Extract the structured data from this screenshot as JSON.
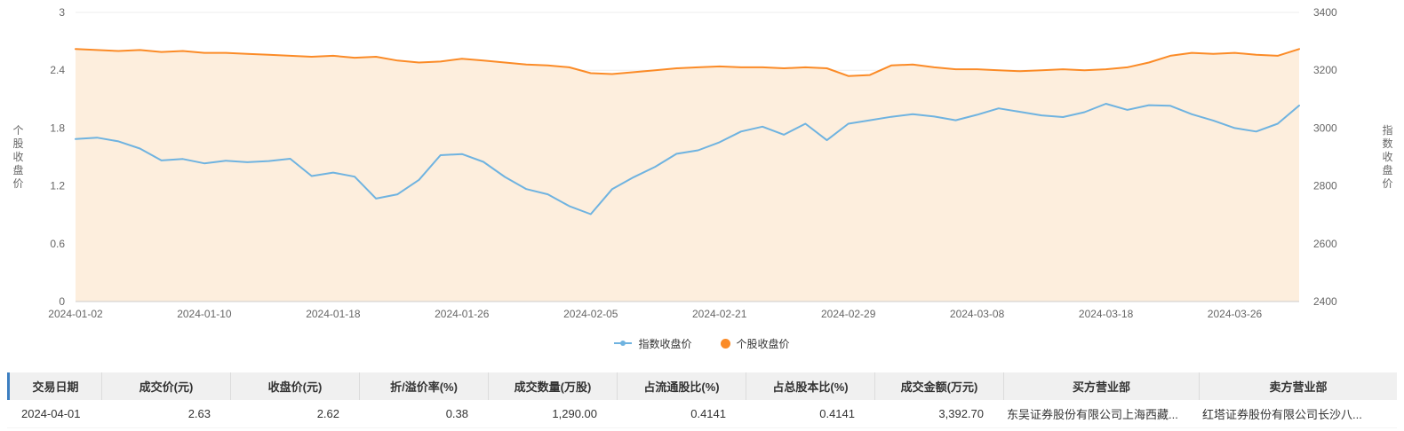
{
  "chart_data": {
    "type": "line",
    "x": [
      "2024-01-02",
      "2024-01-03",
      "2024-01-04",
      "2024-01-05",
      "2024-01-08",
      "2024-01-09",
      "2024-01-10",
      "2024-01-11",
      "2024-01-12",
      "2024-01-15",
      "2024-01-16",
      "2024-01-17",
      "2024-01-18",
      "2024-01-19",
      "2024-01-22",
      "2024-01-23",
      "2024-01-24",
      "2024-01-25",
      "2024-01-26",
      "2024-01-29",
      "2024-01-30",
      "2024-01-31",
      "2024-02-01",
      "2024-02-02",
      "2024-02-05",
      "2024-02-06",
      "2024-02-07",
      "2024-02-08",
      "2024-02-19",
      "2024-02-20",
      "2024-02-21",
      "2024-02-22",
      "2024-02-23",
      "2024-02-26",
      "2024-02-27",
      "2024-02-28",
      "2024-02-29",
      "2024-03-01",
      "2024-03-04",
      "2024-03-05",
      "2024-03-06",
      "2024-03-07",
      "2024-03-08",
      "2024-03-11",
      "2024-03-12",
      "2024-03-13",
      "2024-03-14",
      "2024-03-15",
      "2024-03-18",
      "2024-03-19",
      "2024-03-20",
      "2024-03-21",
      "2024-03-22",
      "2024-03-25",
      "2024-03-26",
      "2024-03-27",
      "2024-03-28",
      "2024-03-29"
    ],
    "x_tick_indices": [
      0,
      6,
      12,
      18,
      24,
      30,
      36,
      42,
      48,
      54
    ],
    "series": [
      {
        "name": "指数收盘价",
        "axis": "right",
        "color": "#6fb3e0",
        "values": [
          2962,
          2967,
          2954,
          2929,
          2888,
          2893,
          2878,
          2887,
          2882,
          2886,
          2894,
          2834,
          2846,
          2832,
          2756,
          2771,
          2821,
          2906,
          2910,
          2883,
          2831,
          2789,
          2771,
          2730,
          2702,
          2789,
          2830,
          2866,
          2911,
          2923,
          2951,
          2988,
          3005,
          2977,
          3015,
          2958,
          3015,
          3027,
          3039,
          3048,
          3040,
          3027,
          3046,
          3068,
          3056,
          3044,
          3038,
          3055,
          3084,
          3063,
          3079,
          3077,
          3048,
          3026,
          3000,
          2988,
          3015,
          3078
        ]
      },
      {
        "name": "个股收盘价",
        "axis": "left",
        "color": "#fb8b27",
        "area_color": "#fdeedd",
        "values": [
          2.62,
          2.61,
          2.6,
          2.61,
          2.59,
          2.6,
          2.58,
          2.58,
          2.57,
          2.56,
          2.55,
          2.54,
          2.55,
          2.53,
          2.54,
          2.5,
          2.48,
          2.49,
          2.52,
          2.5,
          2.48,
          2.46,
          2.45,
          2.43,
          2.37,
          2.36,
          2.38,
          2.4,
          2.42,
          2.43,
          2.44,
          2.43,
          2.43,
          2.42,
          2.43,
          2.42,
          2.34,
          2.35,
          2.45,
          2.46,
          2.43,
          2.41,
          2.41,
          2.4,
          2.39,
          2.4,
          2.41,
          2.4,
          2.41,
          2.43,
          2.48,
          2.55,
          2.58,
          2.57,
          2.58,
          2.56,
          2.55,
          2.62
        ]
      }
    ],
    "left_axis": {
      "title": "个股收盘价",
      "min": 0,
      "max": 3,
      "ticks": [
        0,
        0.6,
        1.2,
        1.8,
        2.4,
        3
      ]
    },
    "right_axis": {
      "title": "指数收盘价",
      "min": 2400,
      "max": 3400,
      "ticks": [
        2400,
        2600,
        2800,
        3000,
        3200,
        3400
      ]
    },
    "legend": [
      {
        "label": "指数收盘价",
        "marker": "line",
        "color": "#6fb3e0"
      },
      {
        "label": "个股收盘价",
        "marker": "circle",
        "color": "#fb8b27"
      }
    ],
    "grid": true,
    "legend_position": "bottom-center"
  },
  "table": {
    "headers": [
      "交易日期",
      "成交价(元)",
      "收盘价(元)",
      "折/溢价率(%)",
      "成交数量(万股)",
      "占流通股比(%)",
      "占总股本比(%)",
      "成交金额(万元)",
      "买方营业部",
      "卖方营业部"
    ],
    "rows": [
      [
        "2024-04-01",
        "2.63",
        "2.62",
        "0.38",
        "1,290.00",
        "0.4141",
        "0.4141",
        "3,392.70",
        "东吴证券股份有限公司上海西藏...",
        "红塔证券股份有限公司长沙八..."
      ]
    ]
  },
  "colors": {
    "index_line": "#6fb3e0",
    "stock_line": "#fb8b27",
    "stock_area": "#fdeedd",
    "table_header_accent": "#3d7fc1"
  }
}
